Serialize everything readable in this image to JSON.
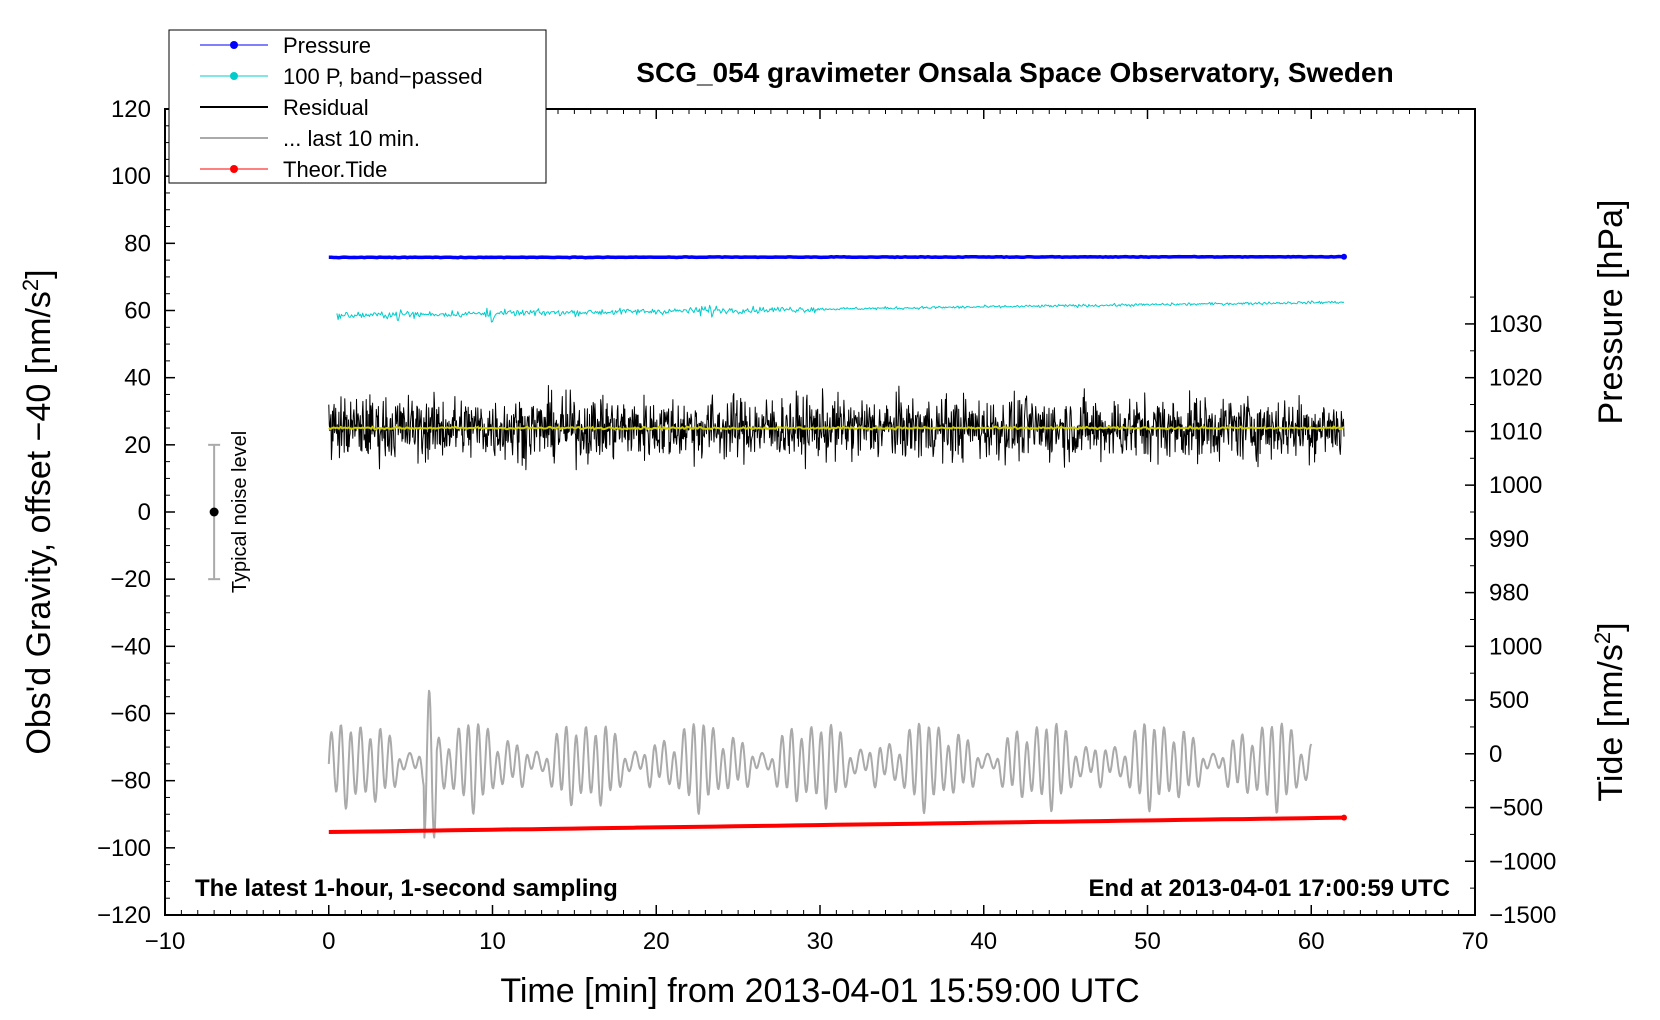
{
  "chart_data": {
    "type": "line",
    "title": "SCG_054 gravimeter Onsala Space Observatory, Sweden",
    "xlabel": "Time [min] from 2013-04-01 15:59:00 UTC",
    "ylabel_prefix": "Obs'd Gravity, offset −40 [nm/s",
    "ylabel_sup": "2",
    "ylabel_suffix": "]",
    "pressure_label": "Pressure [hPa]",
    "tide_label_prefix": "Tide [nm/s",
    "tide_label_sup": "2",
    "tide_label_suffix": "]",
    "xlim": [
      -10,
      70
    ],
    "ylim": [
      -120,
      120
    ],
    "x_ticks": [
      "−10",
      "0",
      "10",
      "20",
      "30",
      "40",
      "50",
      "60",
      "70"
    ],
    "y_ticks": [
      "120",
      "100",
      "80",
      "60",
      "40",
      "20",
      "0",
      "−20",
      "−40",
      "−60",
      "−80",
      "−100",
      "−120"
    ],
    "pressure_ticks": [
      "1030",
      "1020",
      "1010",
      "1000",
      "990",
      "980"
    ],
    "tide_ticks": [
      "1000",
      "500",
      "0",
      "−500",
      "−1000",
      "−1500"
    ],
    "note_left": "The latest 1-hour, 1-second sampling",
    "note_right": "End at 2013-04-01 17:00:59 UTC",
    "noise_label": "Typical noise level",
    "noise_bar": {
      "x": -7,
      "center": 0,
      "low": -20,
      "high": 20
    },
    "legend": [
      {
        "label": "Pressure",
        "color": "#0000ff",
        "marker": true
      },
      {
        "label": "100 P, band−passed",
        "color": "#00cccc",
        "marker": true
      },
      {
        "label": "Residual",
        "color": "#000000",
        "marker": false
      },
      {
        "label": "... last 10 min.",
        "color": "#aaaaaa",
        "marker": false
      },
      {
        "label": "Theor.Tide",
        "color": "#ff0000",
        "marker": true
      }
    ],
    "series": [
      {
        "name": "Pressure",
        "color": "#0000ff",
        "x_range": [
          0,
          62
        ],
        "start": 75.8,
        "end": 76.0,
        "noise": 0.3,
        "width": 3.5
      },
      {
        "name": "100 P, band-passed",
        "color": "#00cccc",
        "x_range": [
          0.5,
          62
        ],
        "start": 58.5,
        "end": 62.5,
        "noise": 1.6,
        "width": 1
      },
      {
        "name": "Residual",
        "color": "#000000",
        "x_range": [
          0,
          62
        ],
        "center": 25,
        "range": [
          1,
          50
        ],
        "width": 1
      },
      {
        "name": "Residual smoothed",
        "color": "#cccc00",
        "x_range": [
          0,
          62
        ],
        "center": 25,
        "noise": 0.6,
        "width": 2
      },
      {
        "name": "... last 10 min.",
        "color": "#aaaaaa",
        "x_range": [
          0,
          60
        ],
        "center": -75,
        "range": [
          -97,
          -50
        ],
        "width": 2
      },
      {
        "name": "Theor.Tide",
        "color": "#ff0000",
        "x_range": [
          0,
          62
        ],
        "start": -95.3,
        "end": -91.0,
        "width": 4
      }
    ]
  }
}
